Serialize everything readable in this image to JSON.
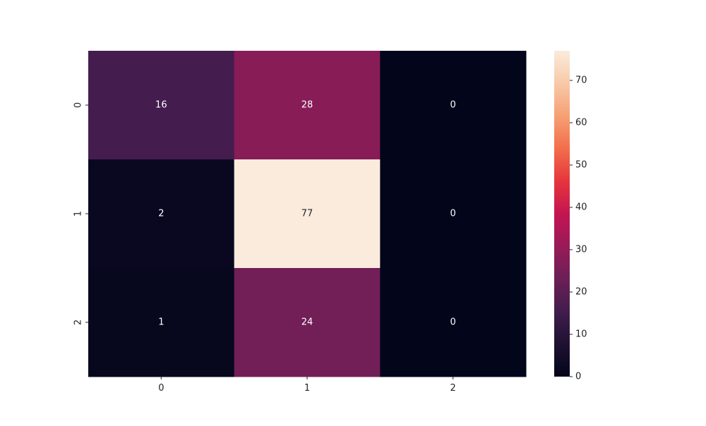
{
  "chart_data": {
    "type": "heatmap",
    "rows": [
      "0",
      "1",
      "2"
    ],
    "columns": [
      "0",
      "1",
      "2"
    ],
    "values": [
      [
        16,
        28,
        0
      ],
      [
        2,
        77,
        0
      ],
      [
        1,
        24,
        0
      ]
    ],
    "colorbar": {
      "min": 0,
      "max": 77,
      "ticks": [
        0,
        10,
        20,
        30,
        40,
        50,
        60,
        70
      ]
    },
    "colormap": "rocket",
    "annotations": true,
    "title": "",
    "xlabel": "",
    "ylabel": "",
    "grid": false
  }
}
